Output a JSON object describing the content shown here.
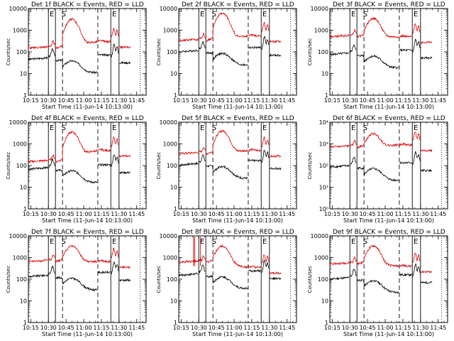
{
  "chart_data": {
    "type": "line",
    "layout": "3x3 grid",
    "shared": {
      "xlabel": "Start Time (11-Jun-14 10:13:00)",
      "ylabel": "Counts/sec",
      "x_tick_labels": [
        "10:15",
        "10:30",
        "10:45",
        "11:00",
        "11:15",
        "11:30",
        "11:45"
      ],
      "x_tick_minutes": [
        15,
        30,
        45,
        60,
        75,
        90,
        105
      ],
      "xlim_minutes": [
        13,
        113
      ],
      "ylim": [
        1,
        10000
      ],
      "y_scale": "log",
      "y_tick_labels": [
        "1",
        "10",
        "100",
        "1000",
        "10000"
      ],
      "y_tick_labels_exp": [
        "10⁰",
        "10¹",
        "10²",
        "10³",
        "10⁴"
      ],
      "series": [
        {
          "name": "Events",
          "color": "#000000"
        },
        {
          "name": "LLD",
          "color": "#dd0000"
        }
      ],
      "markers": {
        "solid_minutes": [
          30,
          36,
          83,
          90
        ],
        "dashed_minutes": [
          42,
          72
        ],
        "dotted_minutes": [
          108
        ],
        "letters": [
          {
            "text": "E",
            "minute": 33
          },
          {
            "text": "S",
            "minute": 43
          },
          {
            "text": "E",
            "minute": 86
          }
        ]
      }
    },
    "panels": [
      {
        "title": "Det 1f BLACK = Events, RED = LLD",
        "red_base": 150,
        "ratio": 0.3,
        "peak": 3200,
        "flat": 300,
        "exp_labels": false
      },
      {
        "title": "Det 2f BLACK = Events, RED = LLD",
        "red_base": 330,
        "ratio": 0.3,
        "peak": 6000,
        "flat": 550,
        "exp_labels": false
      },
      {
        "title": "Det 3f BLACK = Events, RED = LLD",
        "red_base": 500,
        "ratio": 0.15,
        "peak": 3500,
        "flat": 500,
        "exp_labels": false
      },
      {
        "title": "Det 4f BLACK = Events, RED = LLD",
        "red_base": 150,
        "ratio": 0.45,
        "peak": 3500,
        "flat": 500,
        "exp_labels": false
      },
      {
        "title": "Det 5f BLACK = Events, RED = LLD",
        "red_base": 350,
        "ratio": 0.3,
        "peak": 4000,
        "flat": 500,
        "exp_labels": false
      },
      {
        "title": "Det 6f BLACK = Events, RED = LLD",
        "red_base": 700,
        "ratio": 0.12,
        "peak": 3000,
        "flat": 900,
        "exp_labels": true
      },
      {
        "title": "Det 7f BLACK = Events, RED = LLD",
        "red_base": 650,
        "ratio": 0.2,
        "peak": 3500,
        "flat": 650,
        "exp_labels": false
      },
      {
        "title": "Det 8f BLACK = Events, RED = LLD",
        "red_base": 600,
        "ratio": 0.25,
        "peak": 3500,
        "flat": 350,
        "exp_labels": false,
        "spike": true
      },
      {
        "title": "Det 9f BLACK = Events, RED = LLD",
        "red_base": 500,
        "ratio": 0.2,
        "peak": 3500,
        "flat": 400,
        "exp_labels": false
      }
    ]
  }
}
